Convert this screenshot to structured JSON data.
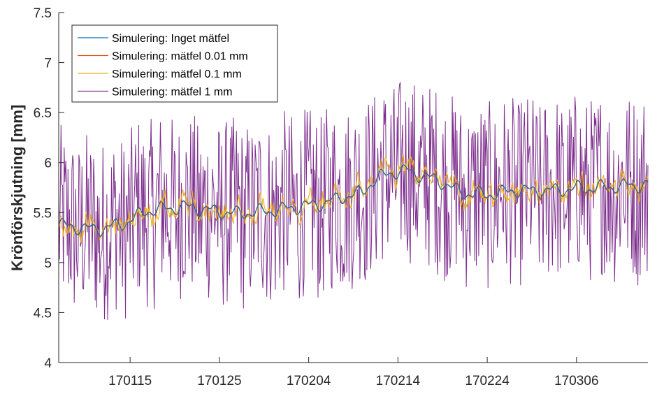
{
  "chart_data": {
    "type": "line",
    "title": "",
    "xlabel": "",
    "ylabel": "Krönförskjutning [mm]",
    "x_ticks": [
      "170115",
      "170125",
      "170204",
      "170214",
      "170224",
      "170306"
    ],
    "x_tick_days": [
      8,
      18,
      28,
      38,
      48,
      58
    ],
    "x_range_days": [
      0,
      66
    ],
    "y_ticks": [
      "4",
      "4.5",
      "5",
      "5.5",
      "6",
      "6.5",
      "7",
      "7.5"
    ],
    "ylim": [
      4,
      7.5
    ],
    "grid": false,
    "legend_position": "top-left",
    "trend_points": [
      [
        0,
        5.38
      ],
      [
        4,
        5.33
      ],
      [
        7,
        5.38
      ],
      [
        10,
        5.52
      ],
      [
        14,
        5.56
      ],
      [
        17,
        5.52
      ],
      [
        20,
        5.49
      ],
      [
        24,
        5.52
      ],
      [
        27,
        5.56
      ],
      [
        30,
        5.6
      ],
      [
        32,
        5.66
      ],
      [
        34,
        5.7
      ],
      [
        35,
        5.8
      ],
      [
        37,
        5.9
      ],
      [
        39,
        5.92
      ],
      [
        41,
        5.86
      ],
      [
        43,
        5.8
      ],
      [
        45,
        5.7
      ],
      [
        48,
        5.68
      ],
      [
        51,
        5.72
      ],
      [
        55,
        5.72
      ],
      [
        58,
        5.74
      ],
      [
        62,
        5.76
      ],
      [
        66,
        5.78
      ]
    ],
    "series": [
      {
        "name": "Simulering: Inget mätfel",
        "color": "#0072BD",
        "noise_mm": 0.0
      },
      {
        "name": "Simulering: mätfel 0.01 mm",
        "color": "#D95319",
        "noise_mm": 0.01
      },
      {
        "name": "Simulering: mätfel 0.1 mm",
        "color": "#EDB120",
        "noise_mm": 0.1
      },
      {
        "name": "Simulering: mätfel 1 mm",
        "color": "#7E2F8E",
        "noise_mm": 1.0
      }
    ]
  }
}
